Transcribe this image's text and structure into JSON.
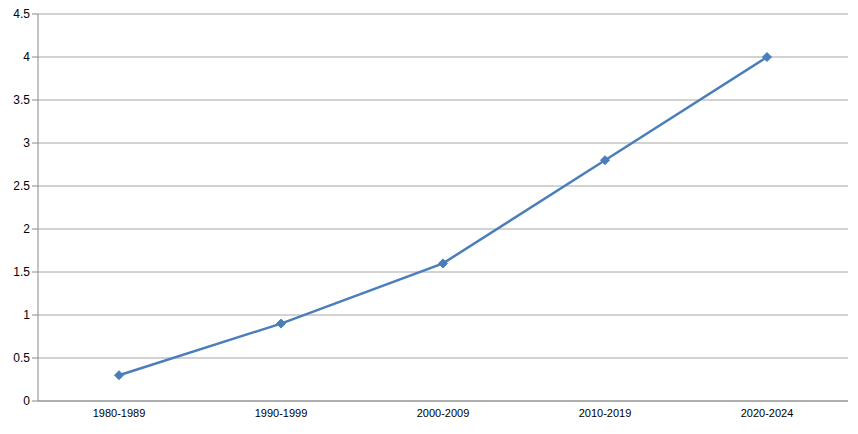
{
  "chart_data": {
    "type": "line",
    "categories": [
      "1980-1989",
      "1990-1999",
      "2000-2009",
      "2010-2019",
      "2020-2024"
    ],
    "values": [
      0.3,
      0.9,
      1.6,
      2.8,
      4.0
    ],
    "color": "#4a7ebb",
    "marker": "diamond",
    "ylim": [
      0,
      4.5
    ],
    "yticks": [
      0,
      0.5,
      1,
      1.5,
      2,
      2.5,
      3,
      3.5,
      4,
      4.5
    ],
    "grid": true
  }
}
